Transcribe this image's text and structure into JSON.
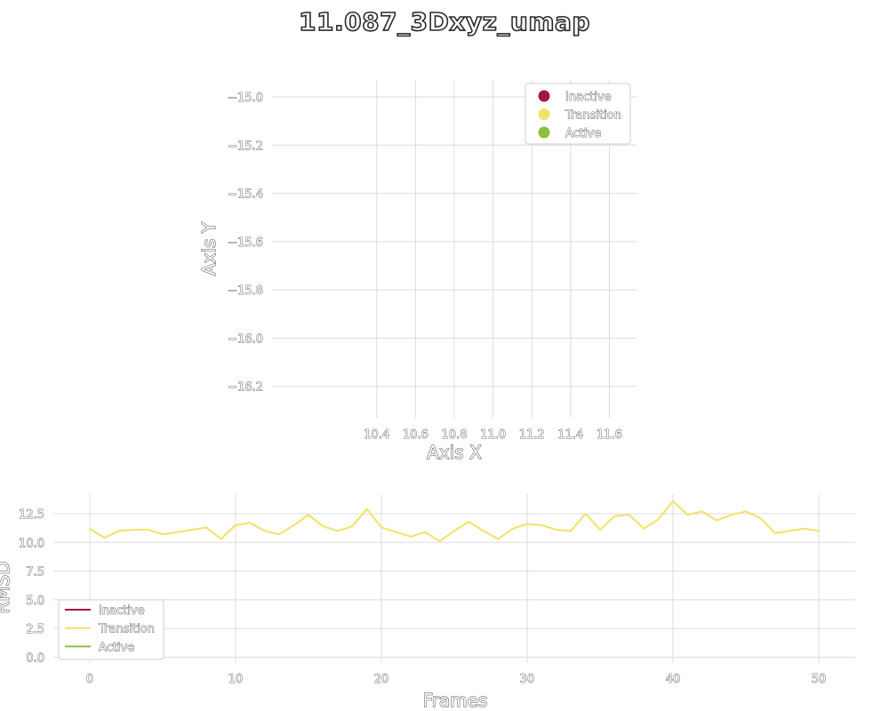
{
  "title": "11.087_3Dxyz_umap",
  "colors": {
    "inactive": "#a3173f",
    "transition": "#f2e266",
    "active": "#8dc03c"
  },
  "chart_data": [
    {
      "type": "scatter",
      "xlabel": "Axis X",
      "ylabel": "Axis Y",
      "xticks": [
        "10.4",
        "10.6",
        "10.8",
        "11.0",
        "11.2",
        "11.4",
        "11.6"
      ],
      "xtick_values": [
        10.4,
        10.6,
        10.8,
        11.0,
        11.2,
        11.4,
        11.6
      ],
      "yticks": [
        "−15.0",
        "−15.2",
        "−15.4",
        "−15.6",
        "−15.8",
        "−16.0",
        "−16.2"
      ],
      "ytick_values": [
        -15.0,
        -15.2,
        -15.4,
        -15.6,
        -15.8,
        -16.0,
        -16.2
      ],
      "xlim": [
        9.86,
        11.74
      ],
      "ylim": [
        -16.33,
        -14.93
      ],
      "grid": true,
      "legend_position": "top-right",
      "legend": [
        "Inactive",
        "Transition",
        "Active"
      ],
      "points": []
    },
    {
      "type": "line",
      "xlabel": "Frames",
      "ylabel": "RMSD",
      "xticks": [
        "0",
        "10",
        "20",
        "30",
        "40",
        "50"
      ],
      "xtick_values": [
        0,
        10,
        20,
        30,
        40,
        50
      ],
      "yticks": [
        "0.0",
        "2.5",
        "5.0",
        "7.5",
        "10.0",
        "12.5"
      ],
      "ytick_values": [
        0,
        2.5,
        5,
        7.5,
        10,
        12.5
      ],
      "xlim": [
        -2.5,
        52.5
      ],
      "ylim": [
        -0.5,
        14.2
      ],
      "grid": true,
      "legend_position": "bottom-left",
      "legend": [
        "Inactive",
        "Transition",
        "Active"
      ],
      "series": [
        {
          "name": "Transition",
          "x": [
            0,
            1,
            2,
            3,
            4,
            5,
            6,
            7,
            8,
            9,
            10,
            11,
            12,
            13,
            14,
            15,
            16,
            17,
            18,
            19,
            20,
            21,
            22,
            23,
            24,
            25,
            26,
            27,
            28,
            29,
            30,
            31,
            32,
            33,
            34,
            35,
            36,
            37,
            38,
            39,
            40,
            41,
            42,
            43,
            44,
            45,
            46,
            47,
            48,
            49,
            50
          ],
          "values": [
            11.2,
            10.4,
            11.0,
            11.1,
            11.1,
            10.7,
            10.9,
            11.1,
            11.3,
            10.3,
            11.5,
            11.7,
            11.0,
            10.7,
            11.5,
            12.4,
            11.4,
            11.0,
            11.4,
            12.9,
            11.3,
            10.9,
            10.5,
            10.9,
            10.1,
            11.0,
            11.8,
            11.0,
            10.3,
            11.2,
            11.6,
            11.5,
            11.1,
            11.0,
            12.5,
            11.1,
            12.3,
            12.4,
            11.2,
            12.0,
            13.6,
            12.4,
            12.7,
            11.9,
            12.4,
            12.7,
            12.1,
            10.8,
            11.0,
            11.2,
            11.0
          ]
        }
      ]
    }
  ]
}
